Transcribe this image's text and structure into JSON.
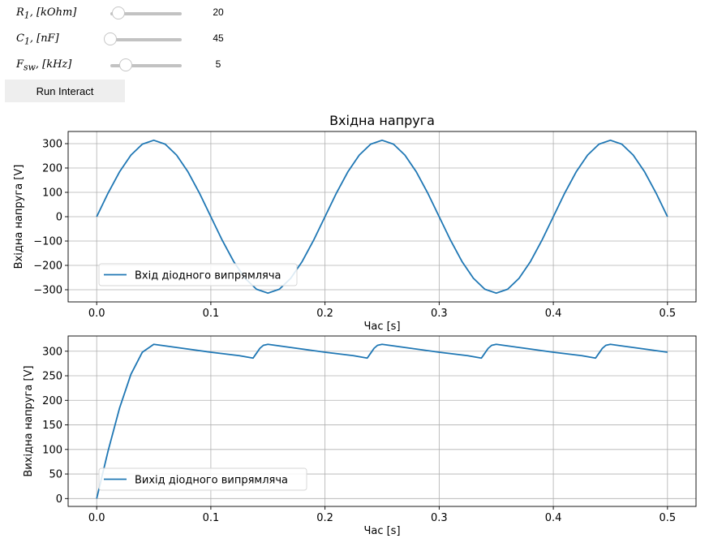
{
  "controls": {
    "sliders": [
      {
        "label_html": "<i>R</i><sub>1</sub>, [<i>kOhm</i>]",
        "value": 20,
        "min": 10,
        "max": 100
      },
      {
        "label_html": "<i>C</i><sub>1</sub>, [<i>nF</i>]",
        "value": 45,
        "min": 45,
        "max": 450
      },
      {
        "label_html": "<i>F</i><sub>sw</sub>, [<i>kHz</i>]",
        "value": 5,
        "min": 1,
        "max": 20
      }
    ],
    "run_button": "Run Interact"
  },
  "colors": {
    "line": "#1f77b4",
    "grid": "#b0b0b0"
  },
  "chart_data": [
    {
      "type": "line",
      "title": "Вхідна напруга",
      "xlabel": "Час [s]",
      "ylabel": "Вхідна напруга [V]",
      "xlim": [
        -0.025,
        0.525
      ],
      "ylim": [
        -350,
        350
      ],
      "xticks": [
        0.0,
        0.1,
        0.2,
        0.3,
        0.4,
        0.5
      ],
      "xtick_labels": [
        "0.0",
        "0.1",
        "0.2",
        "0.3",
        "0.4",
        "0.5"
      ],
      "yticks": [
        -300,
        -200,
        -100,
        0,
        100,
        200,
        300
      ],
      "ytick_labels": [
        "−300",
        "−200",
        "−100",
        "0",
        "100",
        "200",
        "300"
      ],
      "grid": true,
      "legend_position": "lower-left",
      "series": [
        {
          "name": "Вхід діодного випрямляча",
          "x": [
            0.0,
            0.01,
            0.02,
            0.03,
            0.04,
            0.05,
            0.06,
            0.07,
            0.08,
            0.09,
            0.1,
            0.11,
            0.12,
            0.13,
            0.14,
            0.15,
            0.16,
            0.17,
            0.18,
            0.19,
            0.2,
            0.21,
            0.22,
            0.23,
            0.24,
            0.25,
            0.26,
            0.27,
            0.28,
            0.29,
            0.3,
            0.31,
            0.32,
            0.33,
            0.34,
            0.35,
            0.36,
            0.37,
            0.38,
            0.39,
            0.4,
            0.41,
            0.42,
            0.43,
            0.44,
            0.45,
            0.46,
            0.47,
            0.48,
            0.49,
            0.5
          ],
          "y": [
            0,
            97,
            184,
            253,
            298,
            314,
            298,
            253,
            184,
            97,
            0,
            -97,
            -184,
            -253,
            -298,
            -314,
            -298,
            -253,
            -184,
            -97,
            0,
            97,
            184,
            253,
            298,
            314,
            298,
            253,
            184,
            97,
            0,
            -97,
            -184,
            -253,
            -298,
            -314,
            -298,
            -253,
            -184,
            -97,
            0,
            97,
            184,
            253,
            298,
            314,
            298,
            253,
            184,
            97,
            0
          ]
        }
      ]
    },
    {
      "type": "line",
      "title": "",
      "xlabel": "Час [s]",
      "ylabel": "Вихідна напруга [V]",
      "xlim": [
        -0.025,
        0.525
      ],
      "ylim": [
        -16,
        331
      ],
      "xticks": [
        0.0,
        0.1,
        0.2,
        0.3,
        0.4,
        0.5
      ],
      "xtick_labels": [
        "0.0",
        "0.1",
        "0.2",
        "0.3",
        "0.4",
        "0.5"
      ],
      "yticks": [
        0,
        50,
        100,
        150,
        200,
        250,
        300
      ],
      "ytick_labels": [
        "0",
        "50",
        "100",
        "150",
        "200",
        "250",
        "300"
      ],
      "grid": true,
      "legend_position": "lower-left",
      "series": [
        {
          "name": "Вихід діодного випрямляча",
          "x": [
            0.0,
            0.01,
            0.02,
            0.03,
            0.04,
            0.05,
            0.075,
            0.1,
            0.125,
            0.137,
            0.14,
            0.143,
            0.146,
            0.15,
            0.175,
            0.2,
            0.225,
            0.237,
            0.24,
            0.243,
            0.246,
            0.25,
            0.275,
            0.3,
            0.325,
            0.337,
            0.34,
            0.343,
            0.346,
            0.35,
            0.375,
            0.4,
            0.425,
            0.437,
            0.44,
            0.443,
            0.446,
            0.45,
            0.475,
            0.5
          ],
          "y": [
            0,
            97,
            184,
            253,
            298,
            314,
            306,
            298,
            291,
            286,
            296,
            306,
            312,
            314,
            306,
            298,
            291,
            286,
            296,
            306,
            312,
            314,
            306,
            298,
            291,
            286,
            296,
            306,
            312,
            314,
            306,
            298,
            291,
            286,
            296,
            306,
            312,
            314,
            306,
            298
          ]
        }
      ]
    }
  ]
}
